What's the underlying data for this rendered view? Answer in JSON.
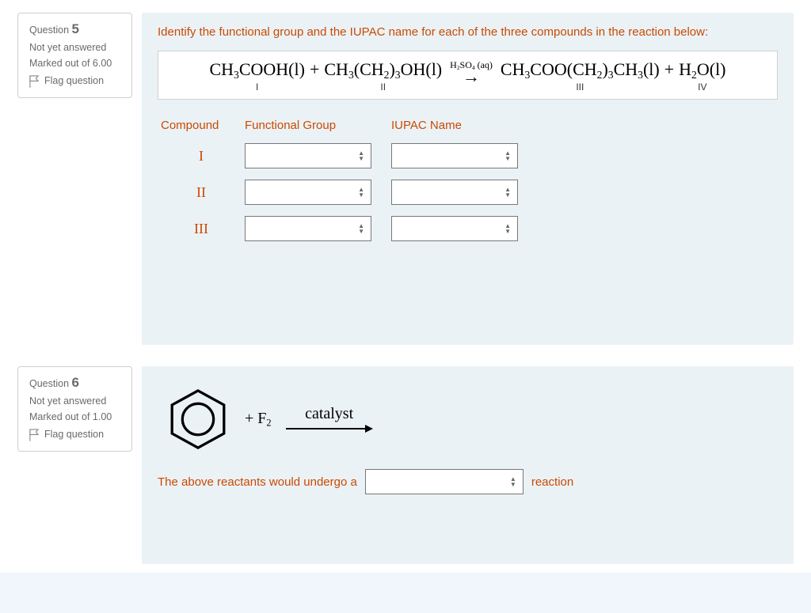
{
  "colors": {
    "accent": "#c94a02",
    "content_bg": "#ebf2f6",
    "border": "#cfcfcf",
    "text": "#333"
  },
  "q5": {
    "info": {
      "qlabel": "Question",
      "number": "5",
      "state": "Not yet answered",
      "marks_label": "Marked out of",
      "marks": "6.00",
      "flag": "Flag question"
    },
    "text": "Identify the functional group and the IUPAC name for each of the three compounds in the reaction below:",
    "equation": {
      "term1": {
        "formula": "CH<sub>3</sub>COOH(l)",
        "label": "I"
      },
      "plus1": "+",
      "term2": {
        "formula": "CH<sub>3</sub>(CH<sub>2</sub>)<sub>3</sub>OH(l)",
        "label": "II"
      },
      "arrow_cond": "H<sub>2</sub>SO<sub>4</sub> (aq)",
      "arrow": "→",
      "term3": {
        "formula": "CH<sub>3</sub>COO(CH<sub>2</sub>)<sub>3</sub>CH<sub>3</sub>(l)",
        "label": "III"
      },
      "plus2": "+",
      "term4": {
        "formula": "H<sub>2</sub>O(l)",
        "label": "IV"
      }
    },
    "table": {
      "headers": {
        "compound": "Compound",
        "fg": "Functional Group",
        "name": "IUPAC Name"
      },
      "rows": [
        {
          "label": "I",
          "fg_selected": "",
          "name_selected": ""
        },
        {
          "label": "II",
          "fg_selected": "",
          "name_selected": ""
        },
        {
          "label": "III",
          "fg_selected": "",
          "name_selected": ""
        }
      ]
    }
  },
  "q6": {
    "info": {
      "qlabel": "Question",
      "number": "6",
      "state": "Not yet answered",
      "marks_label": "Marked out of",
      "marks": "1.00",
      "flag": "Flag question"
    },
    "reaction": {
      "plus": "+ F",
      "sub": "2",
      "catalyst": "catalyst"
    },
    "text_before": "The above reactants would undergo a",
    "text_after": "reaction",
    "select_selected": ""
  }
}
